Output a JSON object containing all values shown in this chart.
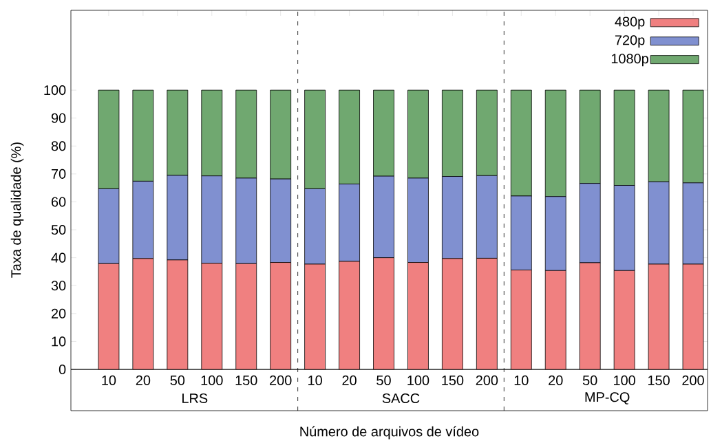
{
  "chart_data": {
    "type": "bar",
    "stacked": true,
    "xlabel": "Número de arquivos de vídeo",
    "ylabel": "Taxa de qualidade (%)",
    "categories": [
      "10",
      "20",
      "50",
      "100",
      "150",
      "200",
      "10",
      "20",
      "50",
      "100",
      "150",
      "200",
      "10",
      "20",
      "50",
      "100",
      "150",
      "200"
    ],
    "series": [
      {
        "name": "480p",
        "color": "#f08080",
        "values": [
          37.9,
          39.7,
          39.2,
          38.0,
          37.9,
          38.3,
          37.7,
          38.7,
          40.0,
          38.3,
          39.7,
          39.8,
          35.6,
          35.4,
          38.2,
          35.4,
          37.7,
          37.7
        ]
      },
      {
        "name": "720p",
        "color": "#8090d0",
        "values": [
          26.8,
          27.7,
          30.3,
          31.3,
          30.6,
          29.9,
          27.0,
          27.7,
          29.2,
          30.2,
          29.4,
          29.6,
          26.5,
          26.5,
          28.4,
          30.5,
          29.5,
          29.1
        ]
      },
      {
        "name": "1080p",
        "color": "#70a870",
        "values": [
          35.3,
          32.6,
          30.5,
          30.7,
          31.5,
          31.8,
          35.3,
          33.6,
          30.8,
          31.5,
          30.9,
          30.6,
          37.9,
          38.1,
          33.4,
          34.1,
          32.8,
          33.2
        ]
      }
    ],
    "annotations": [
      "LRS",
      "SACC",
      "MP-CQ"
    ],
    "ylim": [
      0,
      128.6
    ],
    "yticks": [
      0,
      10,
      20,
      30,
      40,
      50,
      60,
      70,
      80,
      90,
      100
    ],
    "legend": "top right",
    "grid": false
  }
}
